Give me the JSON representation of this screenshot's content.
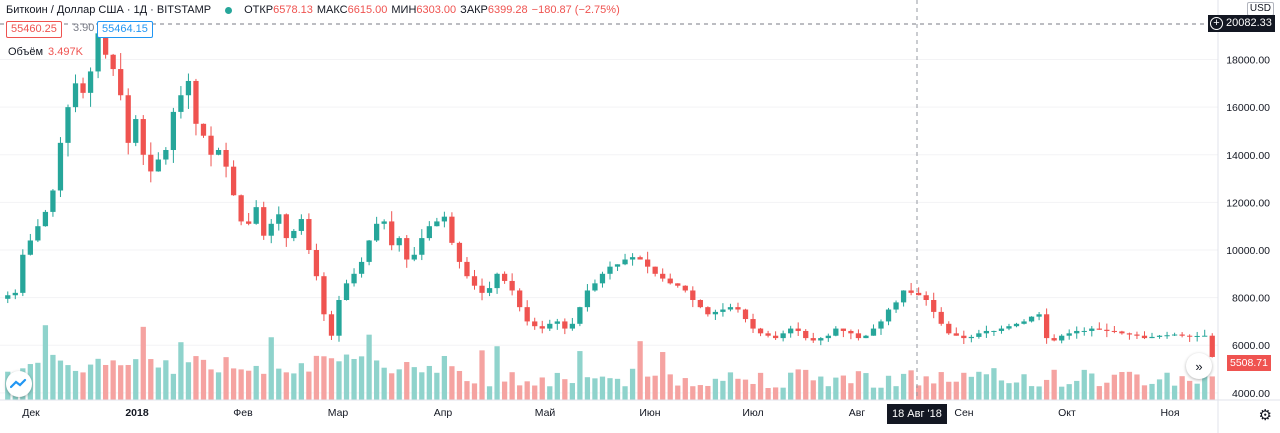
{
  "legend": {
    "title": "Биткоин / Доллар США · 1Д · BITSTAMP",
    "open_label": "ОТКР",
    "open_value": "6578.13",
    "high_label": "МАКС",
    "high_value": "6615.00",
    "low_label": "МИН",
    "low_value": "6303.00",
    "close_label": "ЗАКР",
    "close_value": "6399.28",
    "change": "−180.87 (−2.75%)",
    "status_color": "#26a69a"
  },
  "quote": {
    "sell": "55460.25",
    "spread": "3.90",
    "buy": "55464.15"
  },
  "volume": {
    "label": "Объём",
    "value": "3.497K"
  },
  "currency_button": "USD",
  "crosshair": {
    "price": "20082.33",
    "date": "18 Авг '18"
  },
  "last_price": "5508.71",
  "icons": {
    "add": "plus-circle-icon",
    "logo": "tradingview-logo-icon",
    "scroll": "double-chevron-right-icon",
    "settings": "gear-icon"
  },
  "colors": {
    "up": "#26a69a",
    "down": "#ef5350",
    "vol_up": "#8fd3cc",
    "vol_down": "#f5a3a1"
  },
  "chart_data": {
    "type": "candlestick",
    "y_axis_ticks": [
      "18000.00",
      "16000.00",
      "14000.00",
      "12000.00",
      "10000.00",
      "8000.00",
      "6000.00",
      "4000.00"
    ],
    "x_axis_ticks": [
      "Дек",
      "2018",
      "Фев",
      "Мар",
      "Апр",
      "Май",
      "Июн",
      "Июл",
      "Авг",
      "Сен",
      "Окт",
      "Ноя"
    ],
    "ylim": [
      3700,
      20500
    ],
    "close_series": [
      8100,
      8200,
      9800,
      10400,
      11000,
      11600,
      12500,
      14500,
      16000,
      17000,
      16600,
      17500,
      19100,
      18200,
      17600,
      16500,
      14500,
      15500,
      14000,
      13300,
      13800,
      14200,
      15800,
      16500,
      17100,
      15300,
      14800,
      14000,
      14200,
      13500,
      12300,
      11200,
      11100,
      11800,
      10600,
      11100,
      11500,
      10500,
      10800,
      11300,
      10000,
      8900,
      7300,
      6400,
      7900,
      8600,
      9000,
      9500,
      10400,
      11100,
      11200,
      10200,
      10500,
      9600,
      9800,
      10500,
      11000,
      11200,
      11400,
      10300,
      9500,
      8900,
      8500,
      8200,
      8400,
      9000,
      8700,
      8300,
      7600,
      7000,
      6800,
      6700,
      6900,
      7000,
      6700,
      6900,
      7600,
      8300,
      8600,
      9000,
      9300,
      9400,
      9600,
      9700,
      9600,
      9300,
      9000,
      8800,
      8600,
      8500,
      8300,
      7900,
      7600,
      7300,
      7400,
      7500,
      7600,
      7500,
      7100,
      6700,
      6500,
      6400,
      6300,
      6500,
      6700,
      6600,
      6300,
      6200,
      6300,
      6400,
      6700,
      6600,
      6500,
      6300,
      6400,
      6700,
      7000,
      7500,
      7800,
      8300,
      8200,
      8100,
      7900,
      7400,
      6900,
      6500,
      6400,
      6300,
      6350,
      6500,
      6600,
      6600,
      6700,
      6800,
      6900,
      7000,
      7200,
      7300,
      6300,
      6200,
      6400,
      6500,
      6600,
      6600,
      6700,
      6650,
      6600,
      6580,
      6500,
      6450,
      6400,
      6300,
      6350,
      6400,
      6420,
      6450,
      6400,
      6380,
      6390,
      6400,
      5508
    ]
  }
}
